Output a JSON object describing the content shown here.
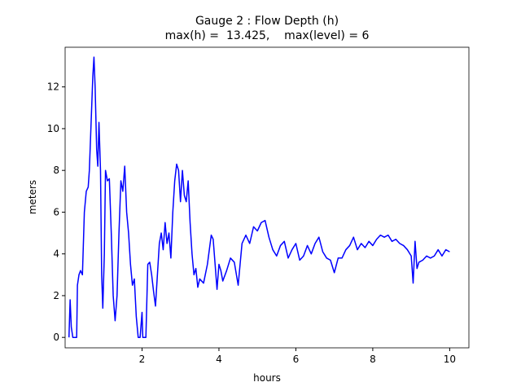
{
  "chart_data": {
    "type": "line",
    "title": "Gauge 2 : Flow Depth (h)",
    "subtitle": "max(h) =  13.425,    max(level) = 6",
    "xlabel": "hours",
    "ylabel": "meters",
    "xlim": [
      0,
      10.5
    ],
    "ylim": [
      -0.5,
      13.9
    ],
    "xticks": [
      2,
      4,
      6,
      8,
      10
    ],
    "yticks": [
      0,
      2,
      4,
      6,
      8,
      10,
      12
    ],
    "grid": false,
    "series": [
      {
        "name": "h",
        "color": "#0000ff",
        "x": [
          0.1,
          0.13,
          0.16,
          0.2,
          0.3,
          0.32,
          0.36,
          0.4,
          0.45,
          0.5,
          0.55,
          0.6,
          0.63,
          0.67,
          0.72,
          0.75,
          0.78,
          0.82,
          0.85,
          0.88,
          0.92,
          0.95,
          0.98,
          1.02,
          1.05,
          1.1,
          1.15,
          1.2,
          1.25,
          1.3,
          1.35,
          1.4,
          1.45,
          1.5,
          1.55,
          1.6,
          1.65,
          1.7,
          1.75,
          1.8,
          1.85,
          1.9,
          1.95,
          2.0,
          2.02,
          2.1,
          2.15,
          2.2,
          2.25,
          2.3,
          2.35,
          2.4,
          2.45,
          2.5,
          2.55,
          2.6,
          2.65,
          2.7,
          2.75,
          2.8,
          2.85,
          2.9,
          2.95,
          3.0,
          3.05,
          3.1,
          3.15,
          3.2,
          3.25,
          3.3,
          3.35,
          3.4,
          3.45,
          3.5,
          3.6,
          3.7,
          3.8,
          3.85,
          3.9,
          3.95,
          4.0,
          4.05,
          4.1,
          4.2,
          4.3,
          4.4,
          4.5,
          4.55,
          4.6,
          4.7,
          4.8,
          4.9,
          5.0,
          5.1,
          5.2,
          5.3,
          5.4,
          5.5,
          5.6,
          5.7,
          5.8,
          5.9,
          6.0,
          6.1,
          6.2,
          6.3,
          6.4,
          6.5,
          6.6,
          6.7,
          6.8,
          6.9,
          7.0,
          7.1,
          7.2,
          7.3,
          7.4,
          7.5,
          7.6,
          7.7,
          7.8,
          7.9,
          8.0,
          8.1,
          8.2,
          8.3,
          8.4,
          8.5,
          8.6,
          8.7,
          8.8,
          8.9,
          9.0,
          9.05,
          9.1,
          9.15,
          9.2,
          9.3,
          9.4,
          9.5,
          9.6,
          9.7,
          9.8,
          9.9,
          10.0
        ],
        "values": [
          0,
          1.8,
          0.5,
          0,
          0,
          2.5,
          3,
          3.2,
          3,
          6,
          7,
          7.2,
          8,
          10,
          12.5,
          13.425,
          12,
          9,
          8.2,
          10.3,
          8,
          3,
          1.4,
          4,
          8,
          7.5,
          7.6,
          5,
          2,
          0.8,
          2,
          5,
          7.5,
          7,
          8.2,
          6,
          5,
          3.5,
          2.5,
          2.8,
          1,
          0,
          0,
          1.2,
          0,
          0,
          3.5,
          3.6,
          3,
          2.2,
          1.5,
          3,
          4.5,
          5,
          4.2,
          5.5,
          4.5,
          5,
          3.8,
          6,
          7.5,
          8.3,
          8,
          6.5,
          8,
          6.8,
          6.5,
          7.5,
          5.5,
          4,
          3,
          3.3,
          2.4,
          2.8,
          2.6,
          3.5,
          4.9,
          4.7,
          3.5,
          2.3,
          3.5,
          3.2,
          2.7,
          3.2,
          3.8,
          3.6,
          2.5,
          3.5,
          4.5,
          4.9,
          4.5,
          5.3,
          5.1,
          5.5,
          5.6,
          4.8,
          4.2,
          3.9,
          4.4,
          4.6,
          3.8,
          4.2,
          4.5,
          3.7,
          3.9,
          4.4,
          4.0,
          4.5,
          4.8,
          4.1,
          3.8,
          3.7,
          3.1,
          3.8,
          3.8,
          4.2,
          4.4,
          4.8,
          4.2,
          4.5,
          4.3,
          4.6,
          4.4,
          4.7,
          4.9,
          4.8,
          4.9,
          4.6,
          4.7,
          4.5,
          4.4,
          4.2,
          3.9,
          2.6,
          4.6,
          3.3,
          3.6,
          3.7,
          3.9,
          3.8,
          3.9,
          4.2,
          3.9,
          4.2,
          4.1
        ]
      }
    ]
  }
}
